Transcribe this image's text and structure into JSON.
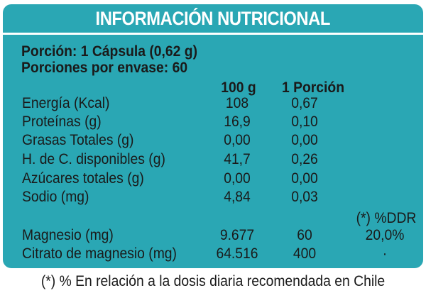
{
  "header": {
    "title": "INFORMACIÓN NUTRICIONAL"
  },
  "serving": {
    "portion": "Porción: 1 Cápsula (0,62 g)",
    "portions_per_container": "Porciones por envase: 60"
  },
  "columns": {
    "per_100g": "100 g",
    "per_portion": "1 Porción",
    "ddr": "(*) %DDR"
  },
  "rows": [
    {
      "label": "Energía (Kcal)",
      "per_100g": "108",
      "per_portion": "0,67",
      "ddr": ""
    },
    {
      "label": "Proteínas (g)",
      "per_100g": "16,9",
      "per_portion": "0,10",
      "ddr": ""
    },
    {
      "label": "Grasas Totales (g)",
      "per_100g": "0,00",
      "per_portion": "0,00",
      "ddr": ""
    },
    {
      "label": "H. de C. disponibles (g)",
      "per_100g": "41,7",
      "per_portion": "0,26",
      "ddr": ""
    },
    {
      "label": "Azúcares totales (g)",
      "per_100g": "0,00",
      "per_portion": "0,00",
      "ddr": ""
    },
    {
      "label": "Sodio (mg)",
      "per_100g": "4,84",
      "per_portion": "0,03",
      "ddr": ""
    },
    {
      "label": "Magnesio (mg)",
      "per_100g": "9.677",
      "per_portion": "60",
      "ddr": "20,0%"
    },
    {
      "label": "Citrato de magnesio (mg)",
      "per_100g": "64.516",
      "per_portion": "400",
      "ddr": "·"
    }
  ],
  "footnote": "(*) % En relación a la dosis diaria recomendada en Chile",
  "colors": {
    "panel": "#2aa7b4",
    "header_text": "#ffffff",
    "body_text": "#1a1a1a"
  }
}
